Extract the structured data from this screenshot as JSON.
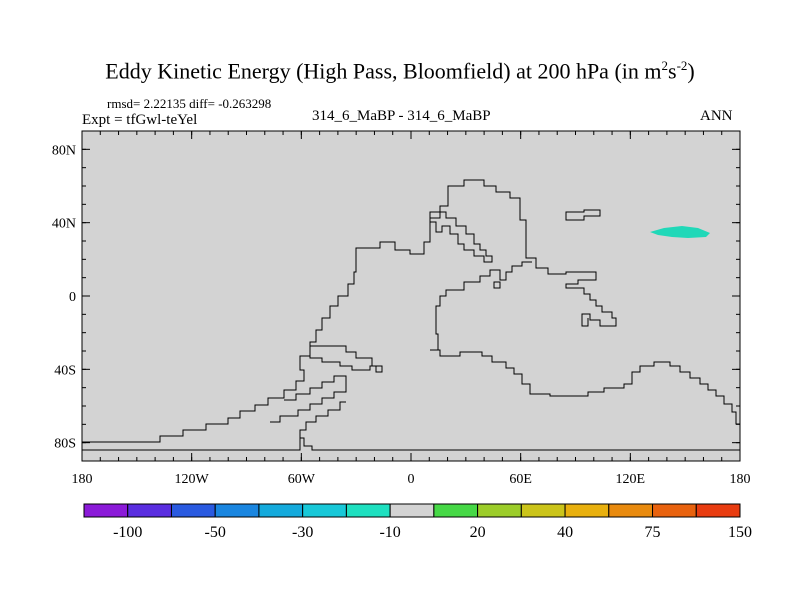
{
  "title_main": "Eddy Kinetic Energy (High Pass, Bloomfield) at 200 hPa (in m",
  "title_unit_sup1": "2",
  "title_unit_s": "s",
  "title_unit_sup2": "-2",
  "title_close": ")",
  "stats": "rmsd= 2.22135 diff= -0.263298",
  "expt": "Expt = tfGwl-teYel",
  "case_label": "314_6_MaBP - 314_6_MaBP",
  "season": "ANN",
  "colors": {
    "land_gray": "#d3d3d3",
    "anomaly": "#20d8b8"
  },
  "chart_data": {
    "type": "heatmap",
    "title": "Eddy Kinetic Energy (High Pass, Bloomfield) at 200 hPa (in m^2 s^-2)",
    "x_ticks": [
      {
        "value": -180,
        "label": "180"
      },
      {
        "value": -120,
        "label": "120W"
      },
      {
        "value": -60,
        "label": "60W"
      },
      {
        "value": 0,
        "label": "0"
      },
      {
        "value": 60,
        "label": "60E"
      },
      {
        "value": 120,
        "label": "120E"
      },
      {
        "value": 180,
        "label": "180"
      }
    ],
    "y_ticks": [
      {
        "value": 80,
        "label": "80N"
      },
      {
        "value": 40,
        "label": "40N"
      },
      {
        "value": 0,
        "label": "0"
      },
      {
        "value": -40,
        "label": "40S"
      },
      {
        "value": -80,
        "label": "80S"
      }
    ],
    "xlim": [
      -180,
      180
    ],
    "ylim": [
      -90,
      90
    ],
    "colorbar": {
      "colors": [
        "#8b1ad8",
        "#5a2ee0",
        "#2a5ae0",
        "#1a86e0",
        "#14aadc",
        "#18c8d8",
        "#1ee0c0",
        "#d3d3d3",
        "#46d846",
        "#9ccd2a",
        "#cbc41a",
        "#e8b00e",
        "#e88a0e",
        "#e8620e",
        "#e83c10"
      ],
      "labels": [
        {
          "after_index": 1,
          "label": "-100"
        },
        {
          "after_index": 3,
          "label": "-50"
        },
        {
          "after_index": 5,
          "label": "-30"
        },
        {
          "after_index": 7,
          "label": "-10"
        },
        {
          "after_index": 9,
          "label": "20"
        },
        {
          "after_index": 11,
          "label": "40"
        },
        {
          "after_index": 13,
          "label": "75"
        },
        {
          "after_index": 15,
          "label": "150"
        }
      ]
    },
    "anomaly_patch": {
      "lon_range": [
        131,
        163
      ],
      "lat_range": [
        32,
        37
      ],
      "category": "-10"
    }
  }
}
